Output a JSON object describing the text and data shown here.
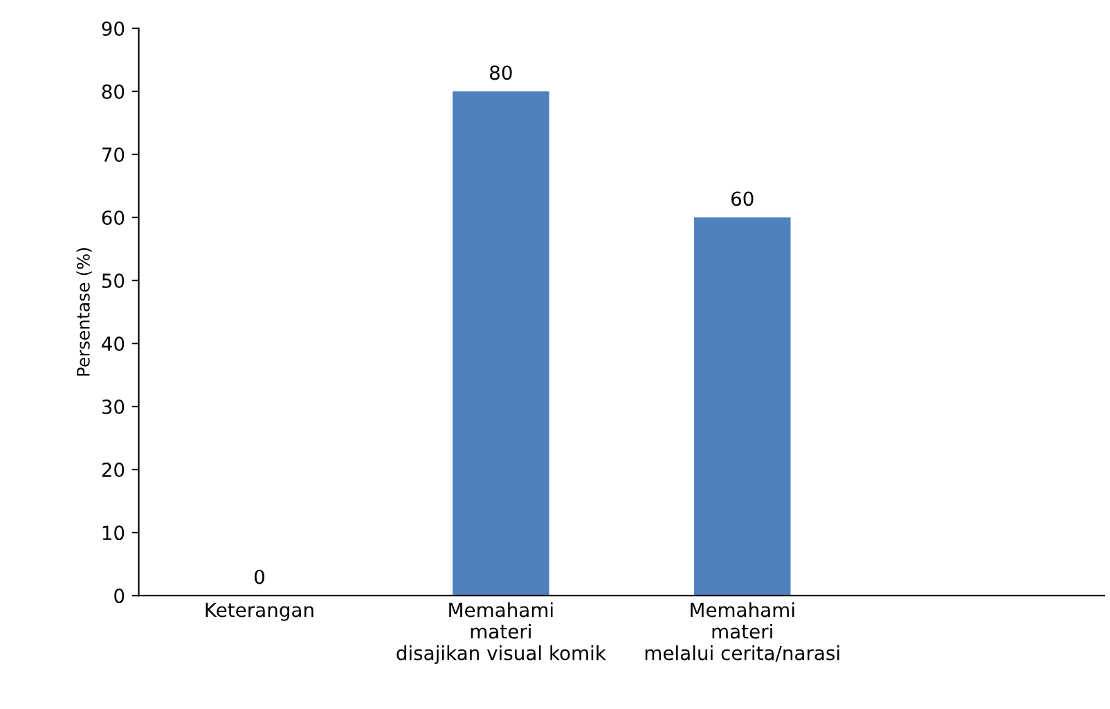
{
  "chart_data": {
    "type": "bar",
    "ylabel": "Persentase (%)",
    "categories": [
      "Keterangan",
      "Memahami materi disajikan visual komik",
      "Memahami materi melalui cerita/narasi",
      null
    ],
    "values": [
      0,
      80,
      60,
      null
    ],
    "color": "#4f81bd",
    "ylim": [
      0,
      90
    ],
    "yticks": [
      0,
      10,
      20,
      30,
      40,
      50,
      60,
      70,
      80,
      90
    ],
    "grid": false,
    "legend": false,
    "data_labels": true
  }
}
